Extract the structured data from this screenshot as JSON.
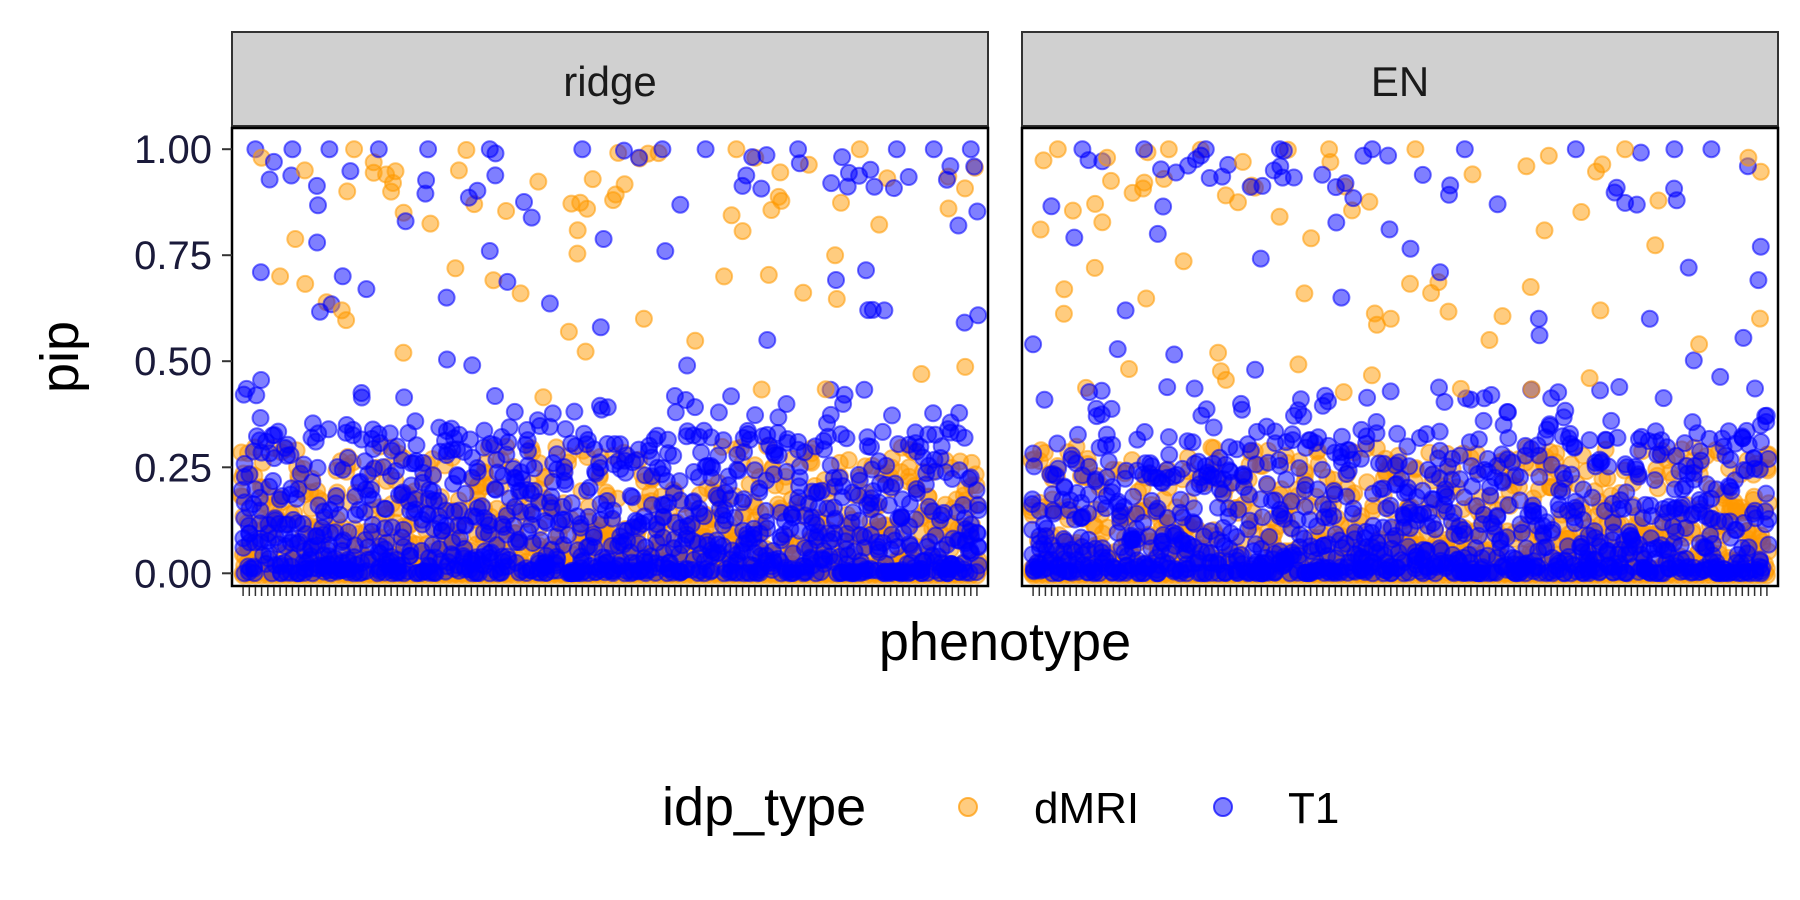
{
  "chart_data": {
    "type": "scatter",
    "panels": [
      "ridge",
      "EN"
    ],
    "xlabel": "phenotype",
    "ylabel": "pip",
    "ylim": [
      0,
      1
    ],
    "yticks": [
      0.0,
      0.25,
      0.5,
      0.75,
      1.0
    ],
    "ytick_labels": [
      "0.00",
      "0.25",
      "0.50",
      "0.75",
      "1.00"
    ],
    "n_phenotypes": 120,
    "legend": {
      "title": "idp_type",
      "position": "bottom",
      "entries": [
        {
          "name": "dMRI",
          "color": "#FF9900"
        },
        {
          "name": "T1",
          "color": "#0000FF"
        }
      ]
    },
    "series": [
      {
        "name": "dMRI",
        "color": "#FF9900"
      },
      {
        "name": "T1",
        "color": "#0000FF"
      }
    ],
    "high_pip_points": {
      "ridge": [
        {
          "series": "T1",
          "x": 2,
          "y": 1.0
        },
        {
          "series": "dMRI",
          "x": 3,
          "y": 0.98
        },
        {
          "series": "T1",
          "x": 5,
          "y": 0.97
        },
        {
          "series": "T1",
          "x": 8,
          "y": 1.0
        },
        {
          "series": "dMRI",
          "x": 10,
          "y": 0.95
        },
        {
          "series": "T1",
          "x": 14,
          "y": 1.0
        },
        {
          "series": "dMRI",
          "x": 18,
          "y": 1.0
        },
        {
          "series": "T1",
          "x": 22,
          "y": 1.0
        },
        {
          "series": "dMRI",
          "x": 24,
          "y": 0.9
        },
        {
          "series": "T1",
          "x": 30,
          "y": 1.0
        },
        {
          "series": "dMRI",
          "x": 35,
          "y": 0.95
        },
        {
          "series": "T1",
          "x": 40,
          "y": 1.0
        },
        {
          "series": "T1",
          "x": 55,
          "y": 1.0
        },
        {
          "series": "dMRI",
          "x": 60,
          "y": 0.88
        },
        {
          "series": "T1",
          "x": 68,
          "y": 1.0
        },
        {
          "series": "T1",
          "x": 75,
          "y": 1.0
        },
        {
          "series": "dMRI",
          "x": 80,
          "y": 1.0
        },
        {
          "series": "T1",
          "x": 90,
          "y": 1.0
        },
        {
          "series": "dMRI",
          "x": 100,
          "y": 1.0
        },
        {
          "series": "T1",
          "x": 106,
          "y": 1.0
        },
        {
          "series": "T1",
          "x": 112,
          "y": 1.0
        },
        {
          "series": "T1",
          "x": 118,
          "y": 1.0
        },
        {
          "series": "dMRI",
          "x": 6,
          "y": 0.7
        },
        {
          "series": "T1",
          "x": 12,
          "y": 0.78
        },
        {
          "series": "dMRI",
          "x": 16,
          "y": 0.62
        },
        {
          "series": "T1",
          "x": 20,
          "y": 0.67
        },
        {
          "series": "dMRI",
          "x": 26,
          "y": 0.52
        },
        {
          "series": "T1",
          "x": 33,
          "y": 0.65
        },
        {
          "series": "T1",
          "x": 40,
          "y": 0.76
        },
        {
          "series": "dMRI",
          "x": 45,
          "y": 0.66
        },
        {
          "series": "T1",
          "x": 58,
          "y": 0.58
        },
        {
          "series": "dMRI",
          "x": 65,
          "y": 0.6
        },
        {
          "series": "T1",
          "x": 72,
          "y": 0.49
        },
        {
          "series": "dMRI",
          "x": 78,
          "y": 0.7
        },
        {
          "series": "T1",
          "x": 85,
          "y": 0.55
        },
        {
          "series": "dMRI",
          "x": 96,
          "y": 0.75
        },
        {
          "series": "T1",
          "x": 104,
          "y": 0.62
        },
        {
          "series": "dMRI",
          "x": 110,
          "y": 0.47
        },
        {
          "series": "T1",
          "x": 116,
          "y": 0.82
        }
      ],
      "EN": [
        {
          "series": "dMRI",
          "x": 4,
          "y": 1.0
        },
        {
          "series": "T1",
          "x": 8,
          "y": 1.0
        },
        {
          "series": "dMRI",
          "x": 12,
          "y": 0.98
        },
        {
          "series": "T1",
          "x": 18,
          "y": 1.0
        },
        {
          "series": "dMRI",
          "x": 22,
          "y": 1.0
        },
        {
          "series": "T1",
          "x": 28,
          "y": 1.0
        },
        {
          "series": "dMRI",
          "x": 34,
          "y": 0.97
        },
        {
          "series": "T1",
          "x": 40,
          "y": 1.0
        },
        {
          "series": "dMRI",
          "x": 48,
          "y": 1.0
        },
        {
          "series": "T1",
          "x": 55,
          "y": 1.0
        },
        {
          "series": "dMRI",
          "x": 62,
          "y": 1.0
        },
        {
          "series": "T1",
          "x": 70,
          "y": 1.0
        },
        {
          "series": "dMRI",
          "x": 80,
          "y": 0.96
        },
        {
          "series": "T1",
          "x": 88,
          "y": 1.0
        },
        {
          "series": "dMRI",
          "x": 96,
          "y": 1.0
        },
        {
          "series": "T1",
          "x": 104,
          "y": 1.0
        },
        {
          "series": "T1",
          "x": 110,
          "y": 1.0
        },
        {
          "series": "dMRI",
          "x": 116,
          "y": 0.98
        },
        {
          "series": "T1",
          "x": 0,
          "y": 0.54
        },
        {
          "series": "dMRI",
          "x": 10,
          "y": 0.72
        },
        {
          "series": "T1",
          "x": 15,
          "y": 0.62
        },
        {
          "series": "dMRI",
          "x": 30,
          "y": 0.52
        },
        {
          "series": "T1",
          "x": 36,
          "y": 0.48
        },
        {
          "series": "dMRI",
          "x": 44,
          "y": 0.66
        },
        {
          "series": "T1",
          "x": 50,
          "y": 0.65
        },
        {
          "series": "dMRI",
          "x": 58,
          "y": 0.6
        },
        {
          "series": "T1",
          "x": 66,
          "y": 0.71
        },
        {
          "series": "dMRI",
          "x": 74,
          "y": 0.55
        },
        {
          "series": "T1",
          "x": 82,
          "y": 0.6
        },
        {
          "series": "dMRI",
          "x": 92,
          "y": 0.62
        },
        {
          "series": "T1",
          "x": 100,
          "y": 0.6
        },
        {
          "series": "dMRI",
          "x": 108,
          "y": 0.54
        },
        {
          "series": "T1",
          "x": 118,
          "y": 0.77
        }
      ]
    }
  }
}
